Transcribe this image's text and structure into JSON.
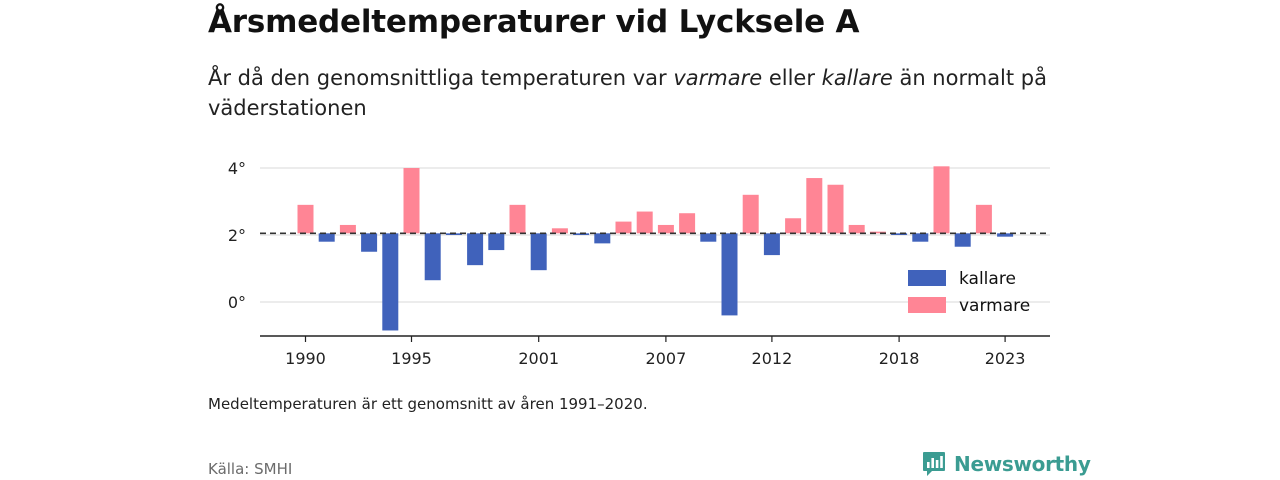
{
  "header": {
    "title": "Årsmedeltemperaturer vid Lycksele A",
    "subtitle_before": "År då den genomsnittliga temperaturen var ",
    "subtitle_warm": "varmare",
    "subtitle_mid": " eller ",
    "subtitle_cold": "kallare",
    "subtitle_after": " än normalt på väderstationen"
  },
  "footnote": "Medeltemperaturen är ett genomsnitt av åren 1991–2020.",
  "source": "Källa: SMHI",
  "brand": {
    "name": "Newsworthy",
    "icon": "bar-chart-speech-icon",
    "color": "#3b9c92"
  },
  "chart_data": {
    "type": "bar",
    "baseline": 2.05,
    "years": [
      1990,
      1991,
      1992,
      1993,
      1994,
      1995,
      1996,
      1997,
      1998,
      1999,
      2000,
      2001,
      2002,
      2003,
      2004,
      2005,
      2006,
      2007,
      2008,
      2009,
      2010,
      2011,
      2012,
      2013,
      2014,
      2015,
      2016,
      2017,
      2018,
      2019,
      2020,
      2021,
      2022,
      2023
    ],
    "values": [
      2.9,
      1.8,
      2.3,
      1.5,
      -0.85,
      4.0,
      0.65,
      2.0,
      1.1,
      1.55,
      2.9,
      0.95,
      2.2,
      2.0,
      1.75,
      2.4,
      2.7,
      2.3,
      2.65,
      1.8,
      -0.4,
      3.2,
      1.4,
      2.5,
      3.7,
      3.5,
      2.3,
      2.1,
      2.0,
      1.8,
      4.05,
      1.65,
      2.9,
      1.95
    ],
    "y_ticks": [
      {
        "value": 0,
        "label": "0°"
      },
      {
        "value": 2,
        "label": "2°"
      },
      {
        "value": 4,
        "label": "4°"
      }
    ],
    "x_ticks": [
      1990,
      1995,
      2001,
      2007,
      2012,
      2018,
      2023
    ],
    "ylim": [
      -1,
      4.3
    ],
    "colors": {
      "warm": "#ff8595",
      "cold": "#4062bb"
    },
    "legend": {
      "position": "bottom-right",
      "items": [
        {
          "key": "cold",
          "label": "kallare"
        },
        {
          "key": "warm",
          "label": "varmare"
        }
      ]
    },
    "grid": true
  }
}
